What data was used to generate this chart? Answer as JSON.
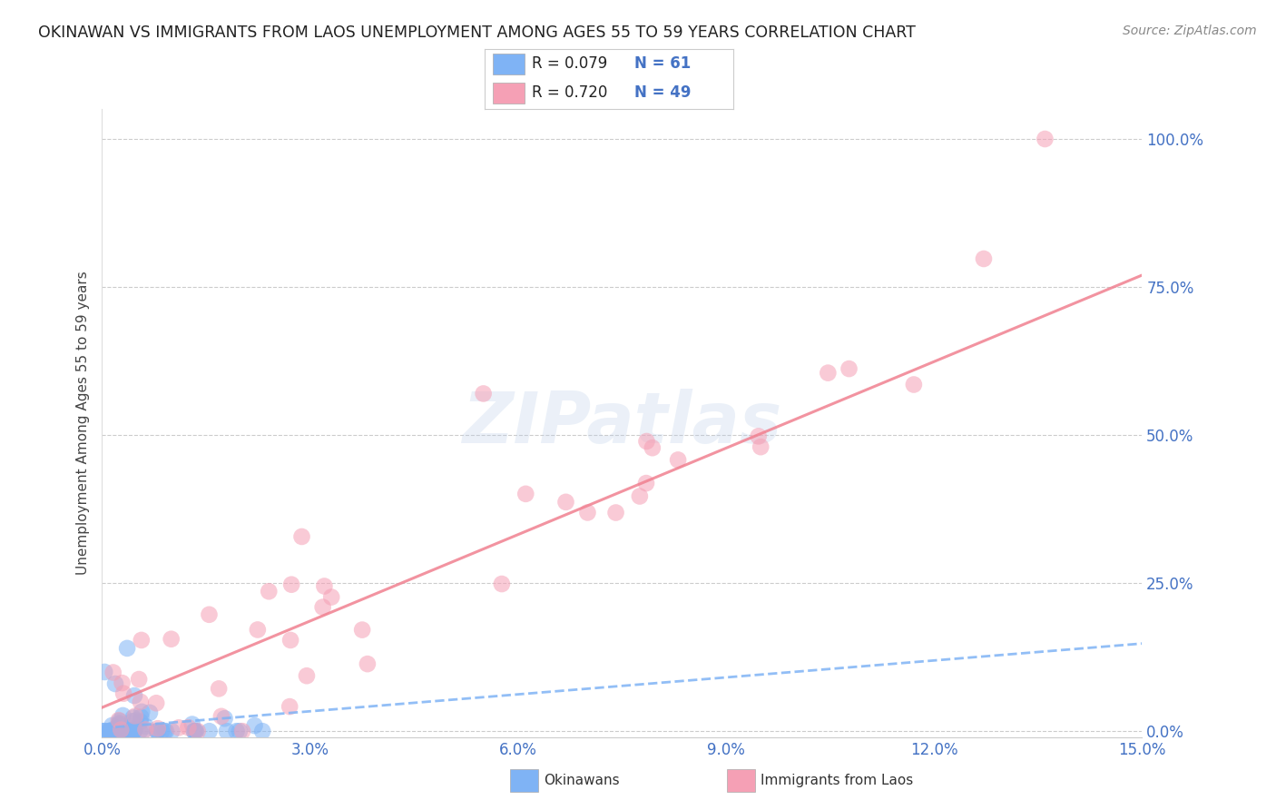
{
  "title": "OKINAWAN VS IMMIGRANTS FROM LAOS UNEMPLOYMENT AMONG AGES 55 TO 59 YEARS CORRELATION CHART",
  "source": "Source: ZipAtlas.com",
  "ylabel": "Unemployment Among Ages 55 to 59 years",
  "xlim": [
    0.0,
    0.15
  ],
  "ylim": [
    -0.01,
    1.05
  ],
  "yticks": [
    0.0,
    0.25,
    0.5,
    0.75,
    1.0
  ],
  "ytick_labels": [
    "0.0%",
    "25.0%",
    "50.0%",
    "75.0%",
    "100.0%"
  ],
  "xticks": [
    0.0,
    0.03,
    0.06,
    0.09,
    0.12,
    0.15
  ],
  "xtick_labels": [
    "0.0%",
    "3.0%",
    "6.0%",
    "9.0%",
    "12.0%",
    "15.0%"
  ],
  "okinawan_color": "#7fb3f5",
  "laos_color": "#f5a0b5",
  "okinawan_line_color": "#7fb3f5",
  "laos_line_color": "#f08090",
  "background_color": "#ffffff",
  "R_ok": 0.079,
  "N_ok": 61,
  "R_laos": 0.72,
  "N_laos": 49,
  "ok_trend_x": [
    0.0,
    0.15
  ],
  "ok_trend_y": [
    0.005,
    0.148
  ],
  "laos_trend_x": [
    0.0,
    0.15
  ],
  "laos_trend_y": [
    0.04,
    0.77
  ]
}
